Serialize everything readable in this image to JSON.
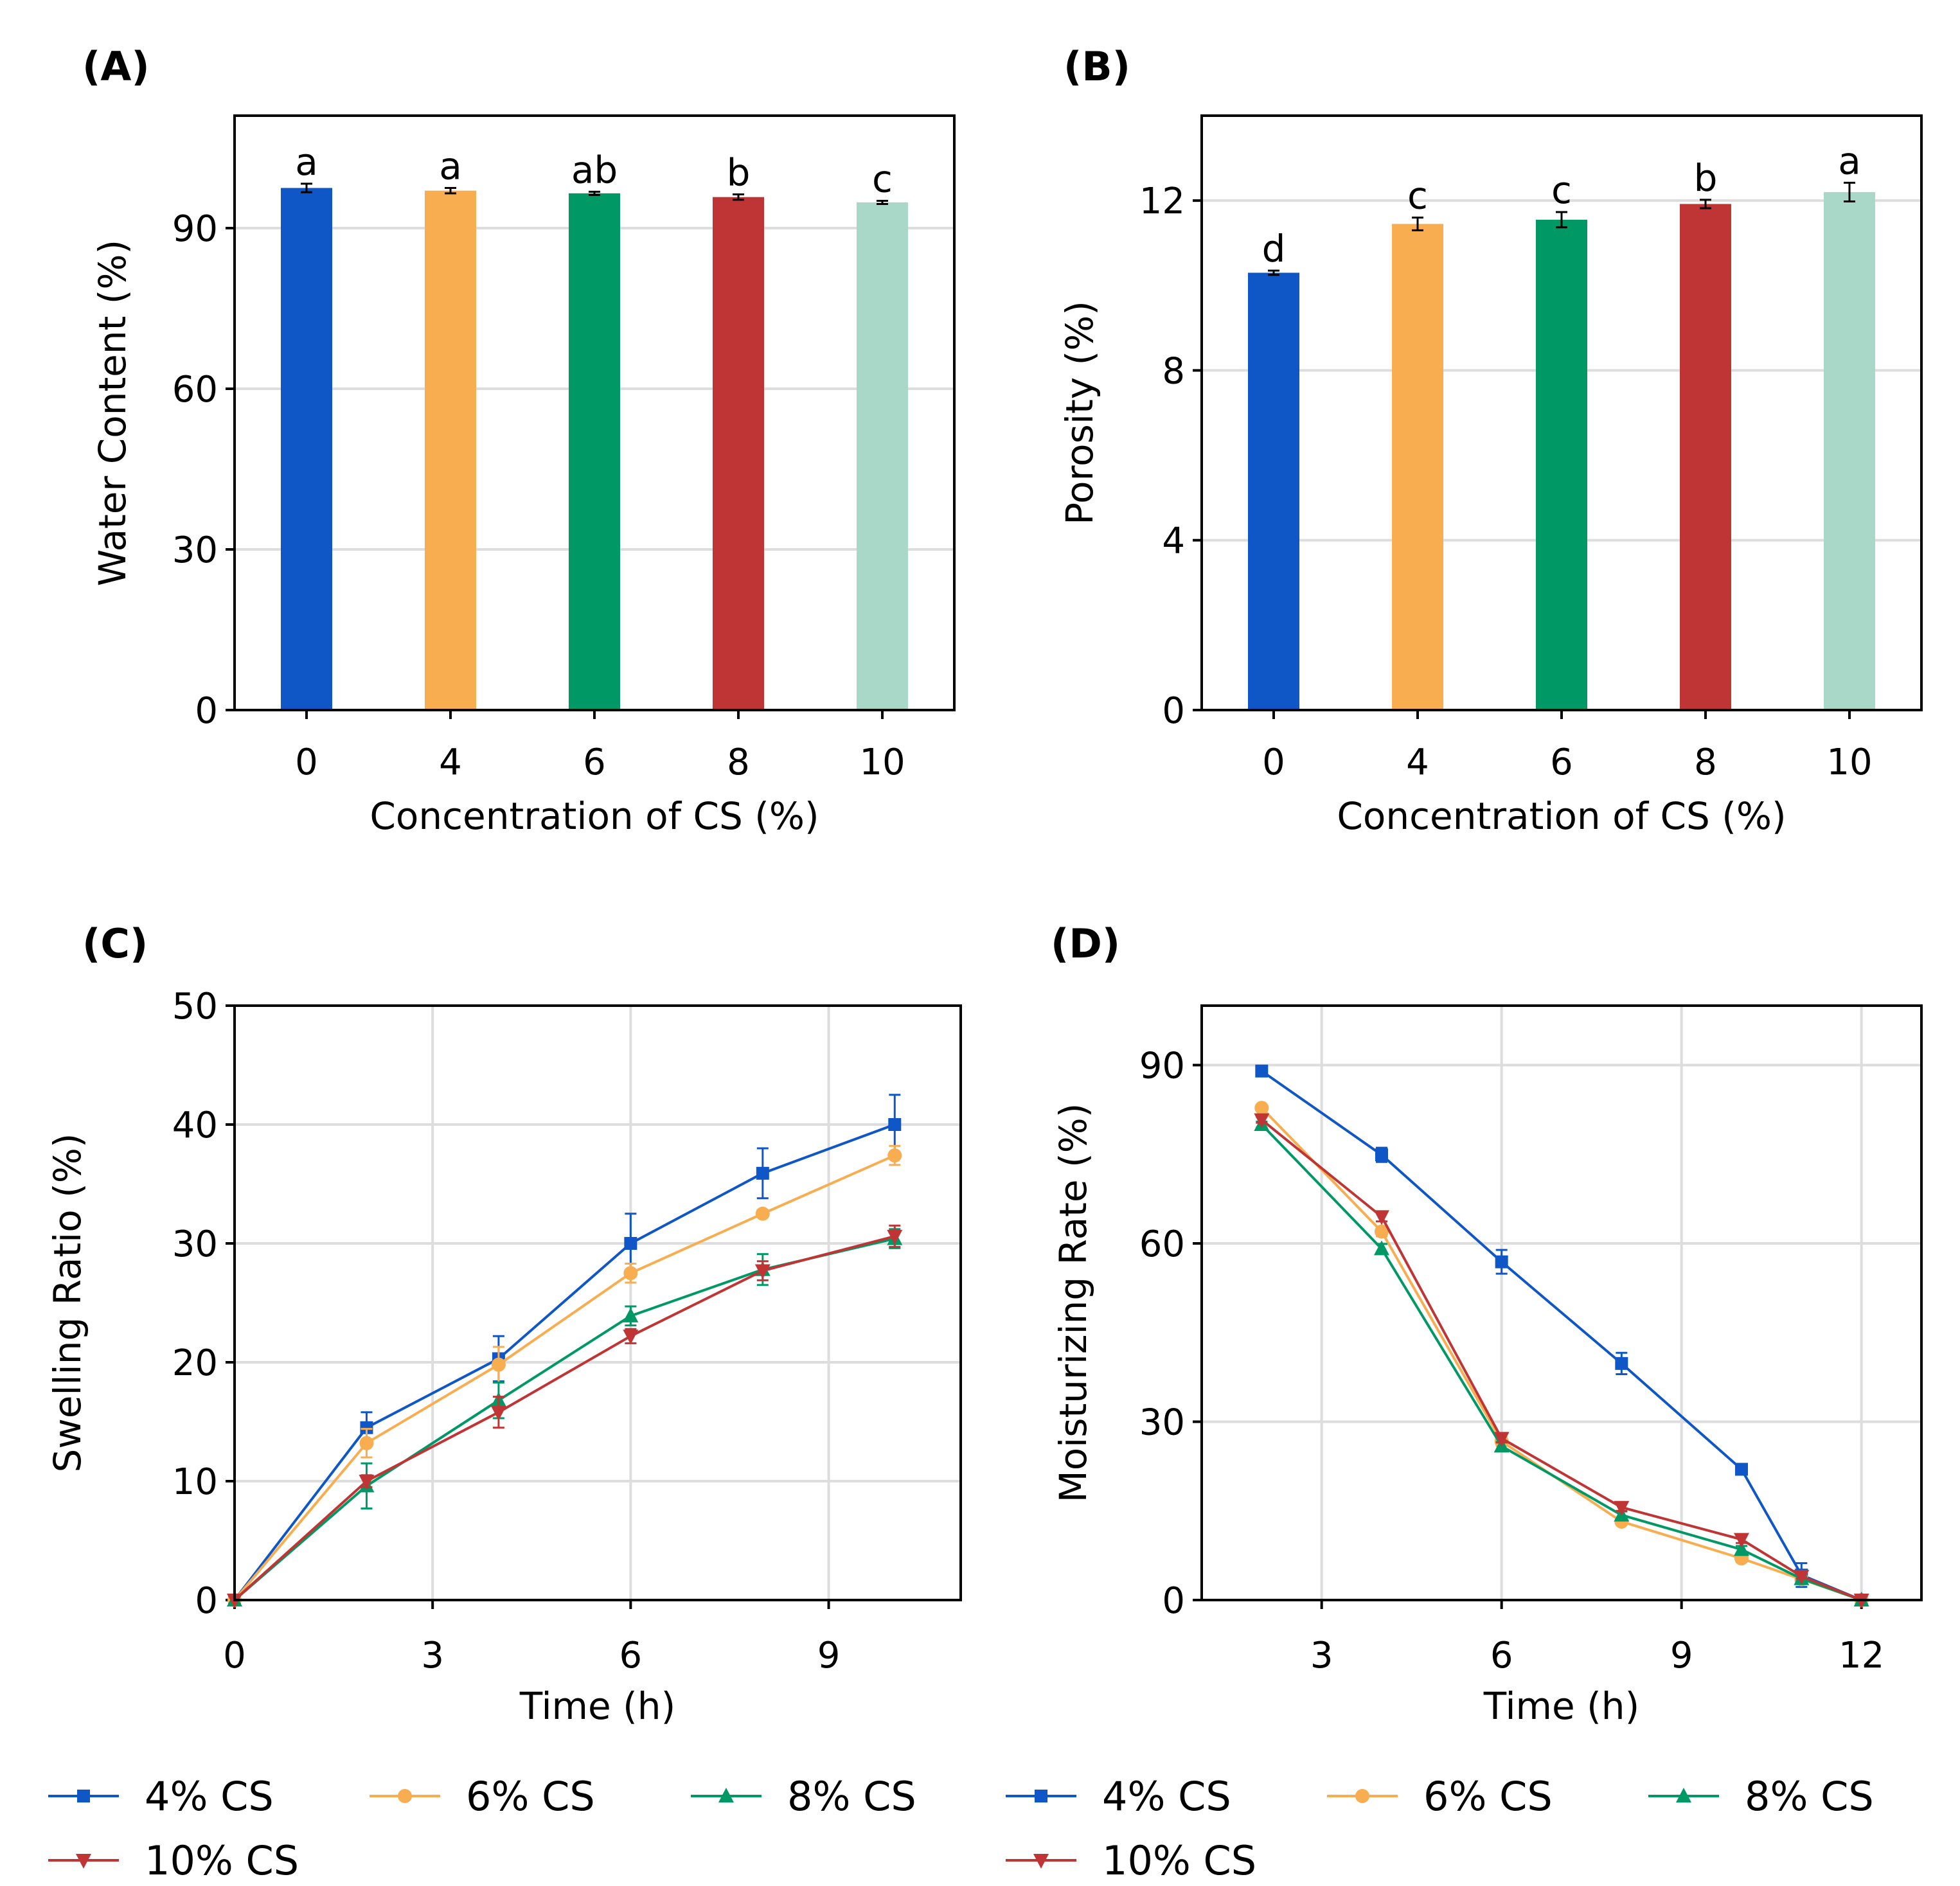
{
  "chart_data": [
    {
      "id": "A",
      "panel_label": "(A)",
      "type": "bar",
      "categories": [
        "0",
        "4",
        "6",
        "8",
        "10"
      ],
      "values": [
        97.5,
        97.0,
        96.5,
        95.8,
        94.8
      ],
      "errors": [
        0.8,
        0.5,
        0.3,
        0.5,
        0.3
      ],
      "significance": [
        "a",
        "a",
        "ab",
        "b",
        "c"
      ],
      "colors": [
        "#0f56c6",
        "#f7ad50",
        "#009966",
        "#bf3535",
        "#a9d7c8"
      ],
      "title": "",
      "xlabel": "Concentration of CS (%)",
      "ylabel": "Water Content (%)",
      "ylim": [
        0,
        111
      ],
      "yticks": [
        0,
        30,
        60,
        90
      ],
      "grid": true
    },
    {
      "id": "B",
      "panel_label": "(B)",
      "type": "bar",
      "categories": [
        "0",
        "4",
        "6",
        "8",
        "10"
      ],
      "values": [
        10.3,
        11.45,
        11.55,
        11.92,
        12.2
      ],
      "errors": [
        0.05,
        0.15,
        0.18,
        0.1,
        0.22
      ],
      "significance": [
        "d",
        "c",
        "c",
        "b",
        "a"
      ],
      "colors": [
        "#0f56c6",
        "#f7ad50",
        "#009966",
        "#bf3535",
        "#a9d7c8"
      ],
      "title": "",
      "xlabel": "Concentration of CS (%)",
      "ylabel": "Porosity (%)",
      "ylim": [
        0,
        14
      ],
      "yticks": [
        0,
        4,
        8,
        12
      ],
      "grid": true
    },
    {
      "id": "C",
      "panel_label": "(C)",
      "type": "line",
      "title": "",
      "xlabel": "Time (h)",
      "ylabel": "Swelling Ratio (%)",
      "xlim": [
        0,
        11
      ],
      "ylim": [
        0,
        50
      ],
      "xticks": [
        0,
        3,
        6,
        9
      ],
      "yticks": [
        0,
        10,
        20,
        30,
        40,
        50
      ],
      "grid": true,
      "legend_position": "bottom",
      "series": [
        {
          "name": "4% CS",
          "color": "#0f56c6",
          "marker": "square",
          "x": [
            0,
            2,
            4,
            6,
            8,
            10
          ],
          "values": [
            0,
            14.5,
            20.3,
            30.0,
            35.9,
            40.0
          ],
          "errors": [
            0,
            1.3,
            1.9,
            2.5,
            2.1,
            2.5
          ]
        },
        {
          "name": "6% CS",
          "color": "#f7ad50",
          "marker": "circle",
          "x": [
            0,
            2,
            4,
            6,
            8,
            10
          ],
          "values": [
            0,
            13.2,
            19.8,
            27.5,
            32.5,
            37.4
          ],
          "errors": [
            0,
            1.2,
            1.5,
            0.8,
            0.3,
            0.8
          ]
        },
        {
          "name": "8% CS",
          "color": "#009966",
          "marker": "triangle-up",
          "x": [
            0,
            2,
            4,
            6,
            8,
            10
          ],
          "values": [
            0,
            9.6,
            16.8,
            23.9,
            27.8,
            30.4
          ],
          "errors": [
            0,
            1.9,
            1.5,
            0.8,
            1.3,
            0.8
          ]
        },
        {
          "name": "10% CS",
          "color": "#bf3535",
          "marker": "triangle-down",
          "x": [
            0,
            2,
            4,
            6,
            8,
            10
          ],
          "values": [
            0,
            10.0,
            15.8,
            22.2,
            27.7,
            30.6
          ],
          "errors": [
            0,
            0.5,
            1.3,
            0.6,
            0.8,
            0.9
          ]
        }
      ]
    },
    {
      "id": "D",
      "panel_label": "(D)",
      "type": "line",
      "title": "",
      "xlabel": "Time (h)",
      "ylabel": "Moisturizing Rate (%)",
      "xlim": [
        1,
        13
      ],
      "ylim": [
        0,
        100
      ],
      "xticks": [
        3,
        6,
        9,
        12
      ],
      "yticks": [
        0,
        30,
        60,
        90
      ],
      "grid": true,
      "legend_position": "bottom",
      "series": [
        {
          "name": "4% CS",
          "color": "#0f56c6",
          "marker": "square",
          "x": [
            2,
            4,
            6,
            8,
            10,
            11,
            12
          ],
          "values": [
            89.0,
            74.9,
            56.9,
            39.8,
            22.0,
            4.2,
            0
          ],
          "errors": [
            0.8,
            1.2,
            2.0,
            1.8,
            0.5,
            2.0,
            0
          ]
        },
        {
          "name": "6% CS",
          "color": "#f7ad50",
          "marker": "circle",
          "x": [
            2,
            4,
            6,
            8,
            10,
            11,
            12
          ],
          "values": [
            82.8,
            62.0,
            26.7,
            13.2,
            7.0,
            3.5,
            0
          ],
          "errors": [
            0.5,
            0.8,
            0.8,
            0.5,
            0.6,
            0.5,
            0
          ]
        },
        {
          "name": "8% CS",
          "color": "#009966",
          "marker": "triangle-up",
          "x": [
            2,
            4,
            6,
            8,
            10,
            11,
            12
          ],
          "values": [
            80.0,
            59.1,
            25.9,
            14.3,
            8.5,
            3.6,
            0
          ],
          "errors": [
            0.5,
            0.8,
            0.7,
            0.6,
            0.6,
            0.4,
            0
          ]
        },
        {
          "name": "10% CS",
          "color": "#bf3535",
          "marker": "triangle-down",
          "x": [
            2,
            4,
            6,
            8,
            10,
            11,
            12
          ],
          "values": [
            80.8,
            64.5,
            27.2,
            15.6,
            10.2,
            4.0,
            0
          ],
          "errors": [
            0.5,
            0.8,
            0.7,
            0.6,
            0.6,
            0.4,
            0
          ]
        }
      ]
    }
  ]
}
